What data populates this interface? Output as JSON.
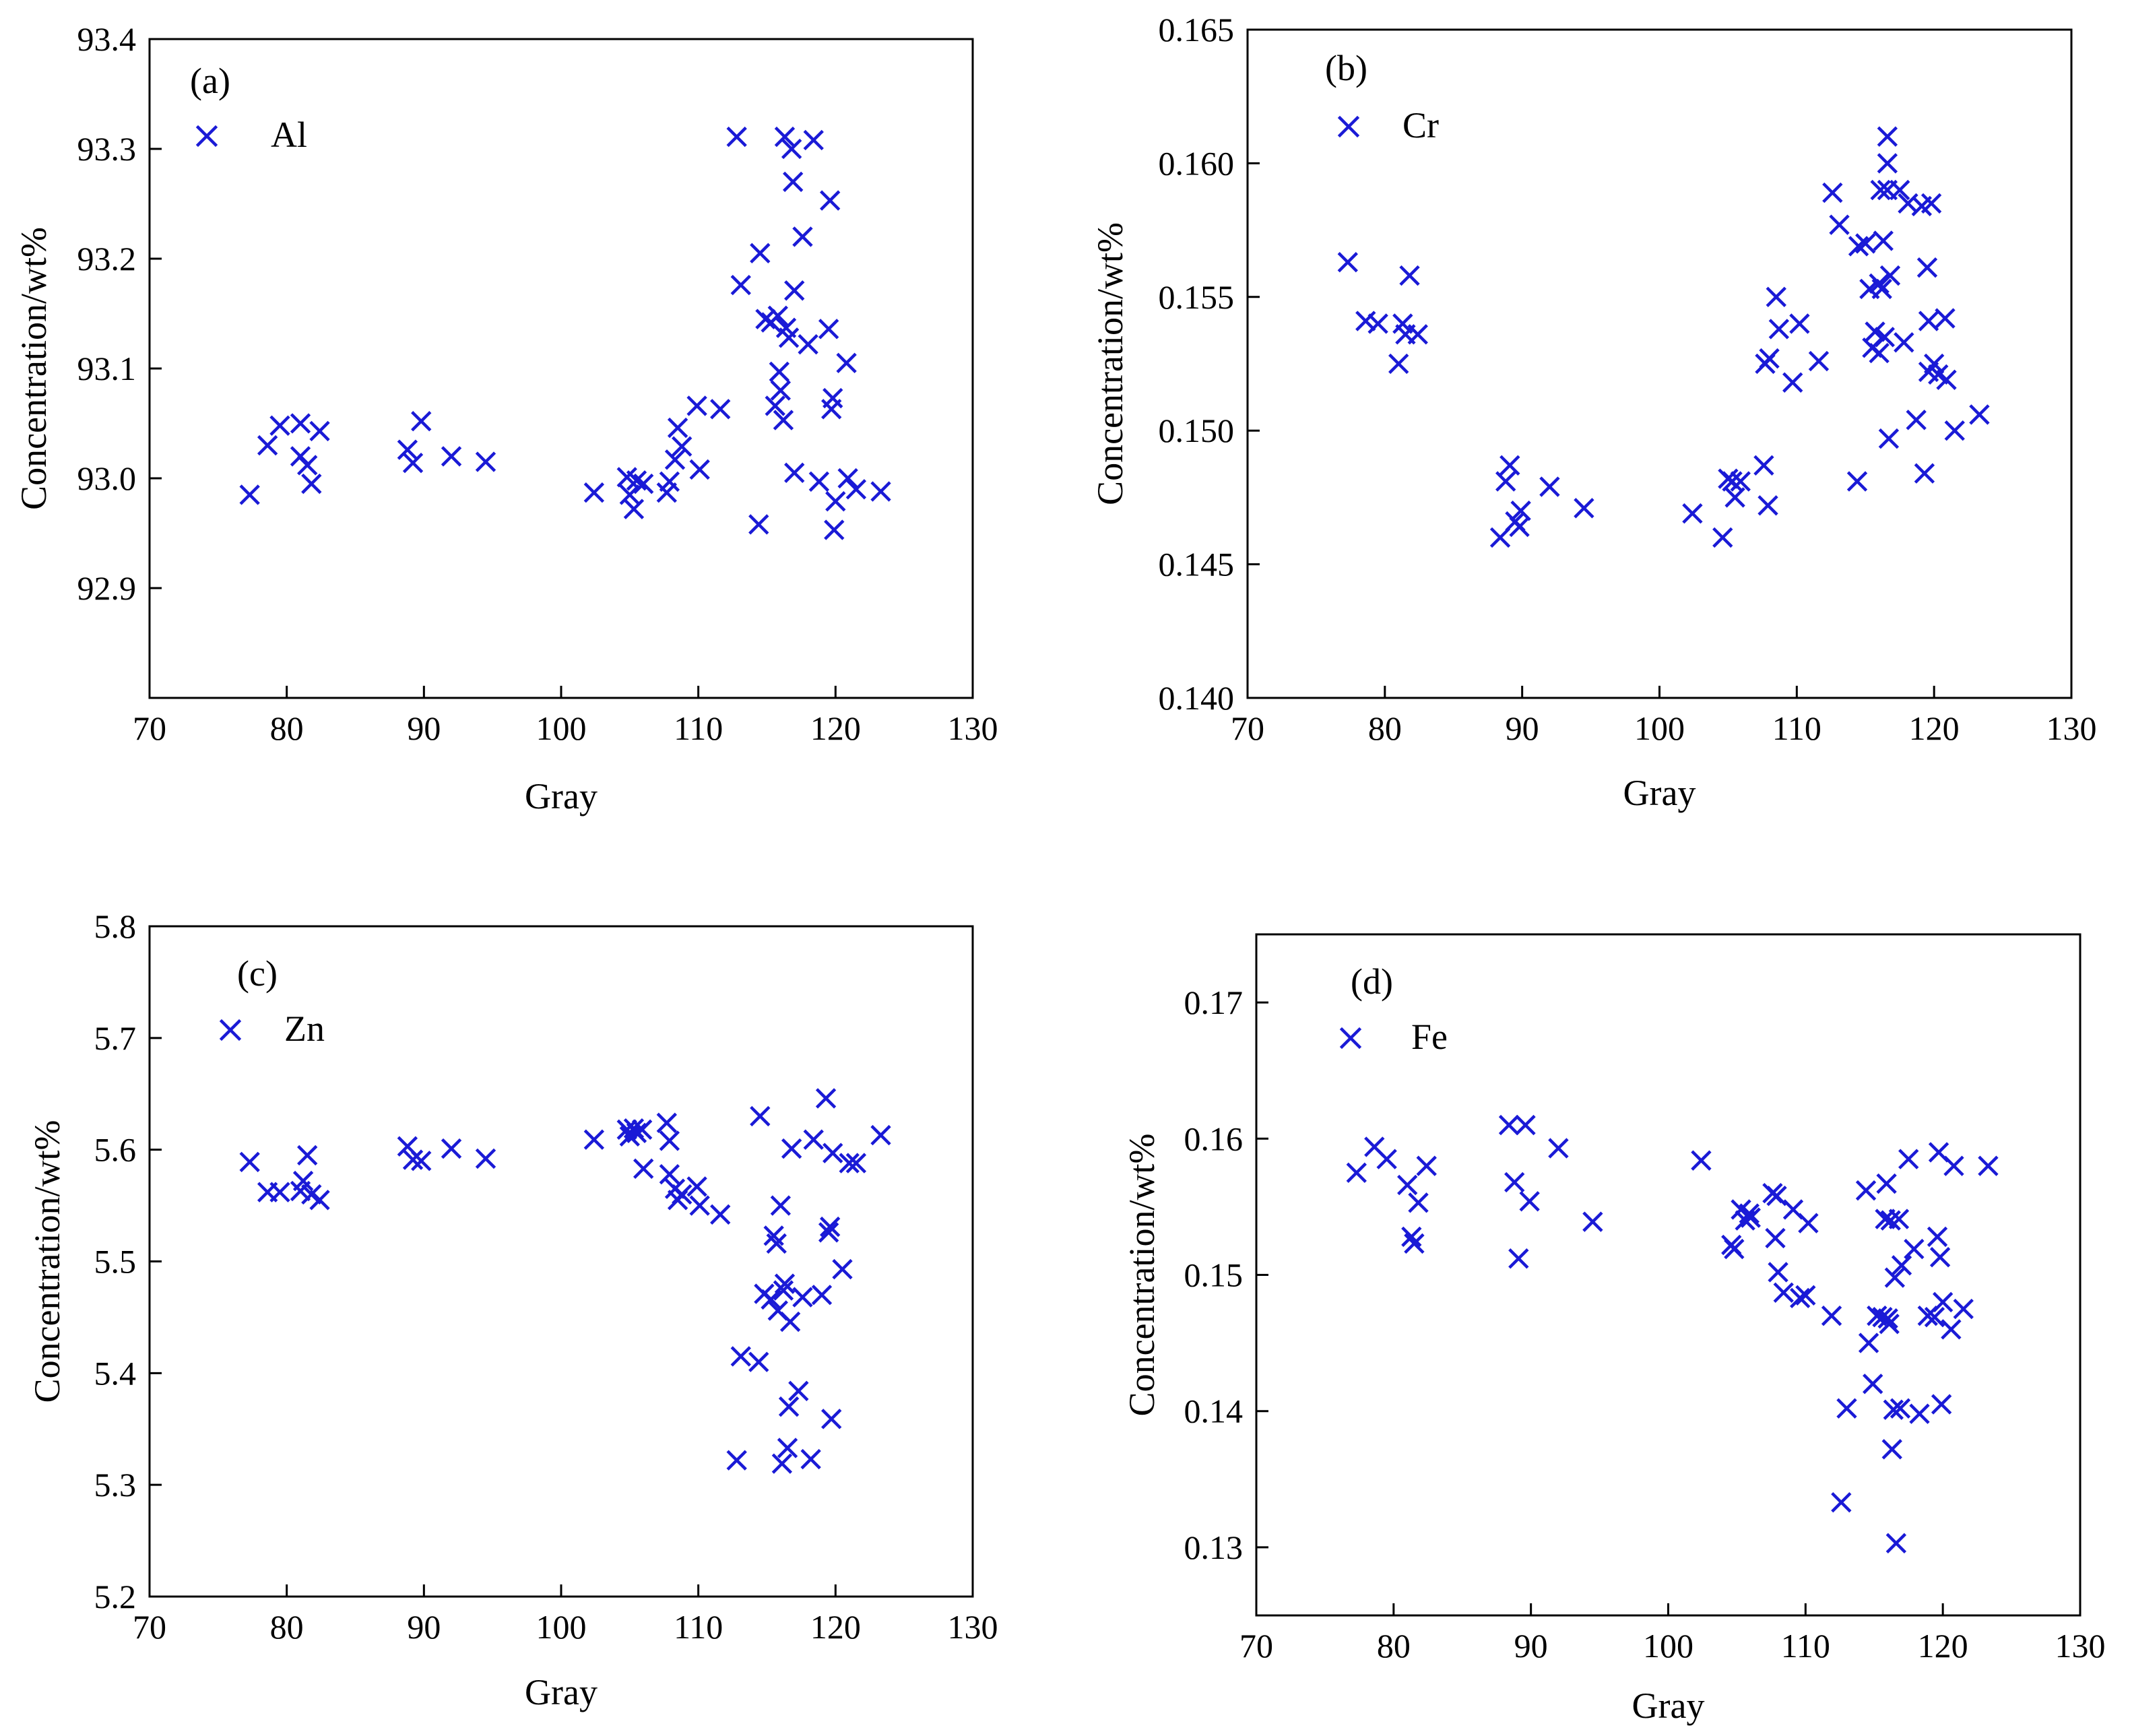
{
  "chart_data": [
    {
      "type": "scatter",
      "panel_label": "(a)",
      "legend": "Al",
      "xlabel": "Gray",
      "ylabel": "Concentration/wt%",
      "xlim": [
        70,
        130
      ],
      "ylim": [
        92.8,
        93.4
      ],
      "xticks": [
        70,
        80,
        90,
        100,
        110,
        120,
        130
      ],
      "yticks": [
        92.9,
        93.0,
        93.1,
        93.2,
        93.3,
        93.4
      ],
      "ytick_labels": [
        "92.9",
        "93.0",
        "93.1",
        "93.2",
        "93.3",
        "93.4"
      ],
      "marker": "x",
      "color": "#1a1ad6",
      "points": [
        [
          77.3,
          92.985
        ],
        [
          78.6,
          93.03
        ],
        [
          79.5,
          93.048
        ],
        [
          81.0,
          93.05
        ],
        [
          81.0,
          93.02
        ],
        [
          81.5,
          93.012
        ],
        [
          81.8,
          92.995
        ],
        [
          82.4,
          93.043
        ],
        [
          88.8,
          93.026
        ],
        [
          89.2,
          93.014
        ],
        [
          89.8,
          93.052
        ],
        [
          92.0,
          93.02
        ],
        [
          94.5,
          93.015
        ],
        [
          102.4,
          92.987
        ],
        [
          104.8,
          93.001
        ],
        [
          105.0,
          92.985
        ],
        [
          105.3,
          92.972
        ],
        [
          105.5,
          92.998
        ],
        [
          106.0,
          92.995
        ],
        [
          107.7,
          92.987
        ],
        [
          107.9,
          92.997
        ],
        [
          108.3,
          93.017
        ],
        [
          108.5,
          93.046
        ],
        [
          108.8,
          93.029
        ],
        [
          109.9,
          93.066
        ],
        [
          110.1,
          93.008
        ],
        [
          111.6,
          93.063
        ],
        [
          112.8,
          93.311
        ],
        [
          113.1,
          93.176
        ],
        [
          114.4,
          92.958
        ],
        [
          114.5,
          93.205
        ],
        [
          114.9,
          93.145
        ],
        [
          115.3,
          93.142
        ],
        [
          115.6,
          93.066
        ],
        [
          115.8,
          93.148
        ],
        [
          115.9,
          93.097
        ],
        [
          116.0,
          93.08
        ],
        [
          116.2,
          93.053
        ],
        [
          116.3,
          93.311
        ],
        [
          116.4,
          93.137
        ],
        [
          116.6,
          93.128
        ],
        [
          116.8,
          93.3
        ],
        [
          116.9,
          93.27
        ],
        [
          117.0,
          93.171
        ],
        [
          117.0,
          93.005
        ],
        [
          117.6,
          93.22
        ],
        [
          118.0,
          93.122
        ],
        [
          118.4,
          93.308
        ],
        [
          118.8,
          92.997
        ],
        [
          119.5,
          93.136
        ],
        [
          119.6,
          93.253
        ],
        [
          119.7,
          93.063
        ],
        [
          119.8,
          93.073
        ],
        [
          119.9,
          92.953
        ],
        [
          120.0,
          92.979
        ],
        [
          120.8,
          93.105
        ],
        [
          120.9,
          93.0
        ],
        [
          121.5,
          92.99
        ],
        [
          123.3,
          92.988
        ]
      ]
    },
    {
      "type": "scatter",
      "panel_label": "(b)",
      "legend": "Cr",
      "xlabel": "Gray",
      "ylabel": "Concentration/wt%",
      "xlim": [
        70,
        130
      ],
      "ylim": [
        0.14,
        0.165
      ],
      "xticks": [
        70,
        80,
        90,
        100,
        110,
        120,
        130
      ],
      "yticks": [
        0.14,
        0.145,
        0.15,
        0.155,
        0.16,
        0.165
      ],
      "ytick_labels": [
        "0.140",
        "0.145",
        "0.150",
        "0.155",
        "0.160",
        "0.165"
      ],
      "marker": "x",
      "color": "#1a1ad6",
      "points": [
        [
          77.3,
          0.1563
        ],
        [
          78.6,
          0.1541
        ],
        [
          79.5,
          0.154
        ],
        [
          81.0,
          0.1525
        ],
        [
          81.3,
          0.154
        ],
        [
          81.5,
          0.1536
        ],
        [
          81.8,
          0.1558
        ],
        [
          82.4,
          0.1536
        ],
        [
          88.4,
          0.146
        ],
        [
          88.8,
          0.1481
        ],
        [
          89.1,
          0.1487
        ],
        [
          89.5,
          0.1466
        ],
        [
          89.8,
          0.1464
        ],
        [
          89.9,
          0.147
        ],
        [
          92.0,
          0.1479
        ],
        [
          94.5,
          0.1471
        ],
        [
          102.4,
          0.1469
        ],
        [
          104.6,
          0.146
        ],
        [
          105.0,
          0.1482
        ],
        [
          105.3,
          0.1481
        ],
        [
          105.5,
          0.1475
        ],
        [
          105.9,
          0.1481
        ],
        [
          107.6,
          0.1487
        ],
        [
          107.7,
          0.1525
        ],
        [
          107.9,
          0.1472
        ],
        [
          108.0,
          0.1527
        ],
        [
          108.5,
          0.155
        ],
        [
          108.7,
          0.1538
        ],
        [
          109.7,
          0.1518
        ],
        [
          110.2,
          0.154
        ],
        [
          111.6,
          0.1526
        ],
        [
          112.6,
          0.1589
        ],
        [
          113.1,
          0.1577
        ],
        [
          114.4,
          0.1481
        ],
        [
          114.5,
          0.1569
        ],
        [
          115.0,
          0.157
        ],
        [
          115.3,
          0.1553
        ],
        [
          115.5,
          0.1531
        ],
        [
          115.7,
          0.1537
        ],
        [
          116.0,
          0.1529
        ],
        [
          116.0,
          0.1555
        ],
        [
          116.1,
          0.159
        ],
        [
          116.2,
          0.1553
        ],
        [
          116.3,
          0.1571
        ],
        [
          116.4,
          0.1535
        ],
        [
          116.6,
          0.161
        ],
        [
          116.6,
          0.16
        ],
        [
          116.6,
          0.159
        ],
        [
          116.7,
          0.1497
        ],
        [
          116.8,
          0.1558
        ],
        [
          117.5,
          0.159
        ],
        [
          117.8,
          0.1533
        ],
        [
          118.1,
          0.1585
        ],
        [
          118.7,
          0.1504
        ],
        [
          119.1,
          0.1584
        ],
        [
          119.3,
          0.1484
        ],
        [
          119.5,
          0.1561
        ],
        [
          119.6,
          0.1541
        ],
        [
          119.6,
          0.1522
        ],
        [
          119.8,
          0.1585
        ],
        [
          120.0,
          0.1525
        ],
        [
          120.3,
          0.1521
        ],
        [
          120.8,
          0.1542
        ],
        [
          120.9,
          0.1519
        ],
        [
          121.5,
          0.15
        ],
        [
          123.3,
          0.1506
        ]
      ]
    },
    {
      "type": "scatter",
      "panel_label": "(c)",
      "legend": "Zn",
      "xlabel": "Gray",
      "ylabel": "Concentration/wt%",
      "xlim": [
        70,
        130
      ],
      "ylim": [
        5.2,
        5.8
      ],
      "xticks": [
        70,
        80,
        90,
        100,
        110,
        120,
        130
      ],
      "yticks": [
        5.2,
        5.3,
        5.4,
        5.5,
        5.6,
        5.7,
        5.8
      ],
      "ytick_labels": [
        "5.2",
        "5.3",
        "5.4",
        "5.5",
        "5.6",
        "5.7",
        "5.8"
      ],
      "marker": "x",
      "color": "#1a1ad6",
      "points": [
        [
          77.3,
          5.589
        ],
        [
          78.6,
          5.562
        ],
        [
          79.5,
          5.562
        ],
        [
          81.0,
          5.563
        ],
        [
          81.2,
          5.572
        ],
        [
          81.5,
          5.595
        ],
        [
          81.8,
          5.56
        ],
        [
          82.4,
          5.555
        ],
        [
          88.8,
          5.603
        ],
        [
          89.2,
          5.591
        ],
        [
          89.8,
          5.59
        ],
        [
          92.0,
          5.601
        ],
        [
          94.5,
          5.592
        ],
        [
          102.4,
          5.609
        ],
        [
          104.8,
          5.618
        ],
        [
          105.0,
          5.612
        ],
        [
          105.3,
          5.619
        ],
        [
          105.5,
          5.615
        ],
        [
          105.9,
          5.618
        ],
        [
          106.0,
          5.583
        ],
        [
          107.7,
          5.624
        ],
        [
          107.9,
          5.608
        ],
        [
          107.9,
          5.578
        ],
        [
          108.3,
          5.565
        ],
        [
          108.5,
          5.555
        ],
        [
          108.8,
          5.56
        ],
        [
          109.9,
          5.567
        ],
        [
          110.1,
          5.55
        ],
        [
          111.6,
          5.542
        ],
        [
          112.8,
          5.322
        ],
        [
          113.1,
          5.415
        ],
        [
          114.4,
          5.41
        ],
        [
          114.5,
          5.63
        ],
        [
          114.8,
          5.471
        ],
        [
          115.3,
          5.466
        ],
        [
          115.5,
          5.523
        ],
        [
          115.7,
          5.516
        ],
        [
          115.8,
          5.456
        ],
        [
          116.0,
          5.55
        ],
        [
          116.1,
          5.319
        ],
        [
          116.2,
          5.474
        ],
        [
          116.3,
          5.48
        ],
        [
          116.5,
          5.333
        ],
        [
          116.6,
          5.37
        ],
        [
          116.7,
          5.446
        ],
        [
          116.8,
          5.601
        ],
        [
          117.3,
          5.384
        ],
        [
          117.6,
          5.468
        ],
        [
          118.2,
          5.323
        ],
        [
          118.4,
          5.609
        ],
        [
          119.0,
          5.47
        ],
        [
          119.3,
          5.646
        ],
        [
          119.5,
          5.526
        ],
        [
          119.6,
          5.531
        ],
        [
          119.7,
          5.359
        ],
        [
          119.8,
          5.597
        ],
        [
          120.5,
          5.493
        ],
        [
          121.0,
          5.588
        ],
        [
          121.5,
          5.588
        ],
        [
          123.3,
          5.613
        ]
      ]
    },
    {
      "type": "scatter",
      "panel_label": "(d)",
      "legend": "Fe",
      "xlabel": "Gray",
      "ylabel": "Concentration/wt%",
      "xlim": [
        70,
        130
      ],
      "ylim": [
        0.125,
        0.175
      ],
      "xticks": [
        70,
        80,
        90,
        100,
        110,
        120,
        130
      ],
      "yticks": [
        0.13,
        0.14,
        0.15,
        0.16,
        0.17
      ],
      "ytick_labels": [
        "0.13",
        "0.14",
        "0.15",
        "0.16",
        "0.17"
      ],
      "marker": "x",
      "color": "#1a1ad6",
      "points": [
        [
          77.3,
          0.1575
        ],
        [
          78.6,
          0.1594
        ],
        [
          79.5,
          0.1585
        ],
        [
          81.0,
          0.1566
        ],
        [
          81.3,
          0.1528
        ],
        [
          81.5,
          0.1523
        ],
        [
          81.8,
          0.1553
        ],
        [
          82.4,
          0.158
        ],
        [
          88.4,
          0.161
        ],
        [
          88.8,
          0.1568
        ],
        [
          89.1,
          0.1512
        ],
        [
          89.6,
          0.161
        ],
        [
          89.9,
          0.1554
        ],
        [
          92.0,
          0.1593
        ],
        [
          94.5,
          0.1539
        ],
        [
          102.4,
          0.1584
        ],
        [
          104.6,
          0.1522
        ],
        [
          104.8,
          0.1519
        ],
        [
          105.3,
          0.1548
        ],
        [
          105.6,
          0.154
        ],
        [
          105.9,
          0.1545
        ],
        [
          106.0,
          0.1542
        ],
        [
          107.6,
          0.156
        ],
        [
          107.8,
          0.1527
        ],
        [
          107.9,
          0.1558
        ],
        [
          108.0,
          0.1502
        ],
        [
          108.4,
          0.1487
        ],
        [
          109.1,
          0.1548
        ],
        [
          109.6,
          0.1483
        ],
        [
          110.0,
          0.1485
        ],
        [
          110.2,
          0.1538
        ],
        [
          111.9,
          0.147
        ],
        [
          112.6,
          0.1333
        ],
        [
          113.0,
          0.1402
        ],
        [
          114.4,
          0.1562
        ],
        [
          114.6,
          0.145
        ],
        [
          114.9,
          0.142
        ],
        [
          115.2,
          0.147
        ],
        [
          115.6,
          0.1469
        ],
        [
          115.8,
          0.1541
        ],
        [
          115.9,
          0.1567
        ],
        [
          116.0,
          0.1468
        ],
        [
          116.1,
          0.1464
        ],
        [
          116.2,
          0.154
        ],
        [
          116.3,
          0.1372
        ],
        [
          116.4,
          0.1401
        ],
        [
          116.5,
          0.1498
        ],
        [
          116.6,
          0.1303
        ],
        [
          116.8,
          0.1541
        ],
        [
          116.9,
          0.1402
        ],
        [
          117.0,
          0.1507
        ],
        [
          117.5,
          0.1585
        ],
        [
          117.9,
          0.1519
        ],
        [
          118.3,
          0.1398
        ],
        [
          118.9,
          0.147
        ],
        [
          119.4,
          0.1469
        ],
        [
          119.6,
          0.1528
        ],
        [
          119.7,
          0.159
        ],
        [
          119.8,
          0.1513
        ],
        [
          119.9,
          0.1405
        ],
        [
          120.0,
          0.148
        ],
        [
          120.6,
          0.146
        ],
        [
          120.8,
          0.158
        ],
        [
          121.5,
          0.1475
        ],
        [
          123.3,
          0.158
        ]
      ]
    }
  ]
}
